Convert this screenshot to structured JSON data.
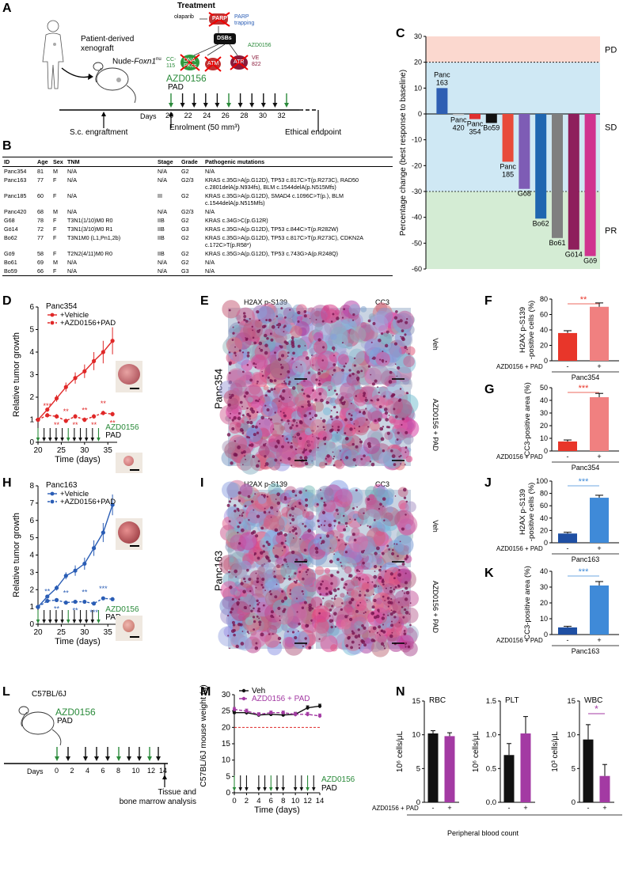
{
  "panels": {
    "A": "A",
    "B": "B",
    "C": "C",
    "D": "D",
    "E": "E",
    "F": "F",
    "G": "G",
    "H": "H",
    "I": "I",
    "J": "J",
    "K": "K",
    "L": "L",
    "M": "M",
    "N": "N"
  },
  "panelA": {
    "patient_xenograft": "Patient-derived\nxenograft",
    "nude": "Nude-",
    "foxn1": "Foxn1",
    "nu": "nu",
    "treatment": "Treatment",
    "olaparib": "olaparib",
    "parp": "PARP",
    "parp_trapping": "PARP\ntrapping",
    "dsbs": "DSBs",
    "azd_small": "AZD0156",
    "cc115": "CC-\n115",
    "dnapkcs": "DNA\nPKcs",
    "atm": "ATM",
    "atr": "ATR",
    "ve822": "VE\n822",
    "azd0156": "AZD0156",
    "pad": "PAD",
    "days": "Days",
    "day_ticks": [
      "20",
      "22",
      "24",
      "26",
      "28",
      "30",
      "32"
    ],
    "sc_engraftment": "S.c. engraftment",
    "enrolment": "Enrolment (50 mm³)",
    "ethical": "Ethical endpoint"
  },
  "table": {
    "headers": [
      "ID",
      "Age",
      "Sex",
      "TNM",
      "Stage",
      "Grade",
      "Pathogenic mutations"
    ],
    "rows": [
      [
        "Panc354",
        "81",
        "M",
        "N/A",
        "N/A",
        "G2",
        "N/A"
      ],
      [
        "Panc163",
        "77",
        "F",
        "N/A",
        "N/A",
        "G2/3",
        "KRAS c.35G>A(p.G12D), TP53 c.817C>T(p.R273C), RAD50 c.2801delA(p.N934fs), BLM c.1544delA(p.N515Mfs)"
      ],
      [
        "Panc185",
        "60",
        "F",
        "N/A",
        "III",
        "G2",
        "KRAS c.35G>A(p.G12D), SMAD4 c.1096C>T(p.), BLM c.1544delA(p.N515Mfs)"
      ],
      [
        "Panc420",
        "68",
        "M",
        "N/A",
        "N/A",
        "G2/3",
        "N/A"
      ],
      [
        "G68",
        "78",
        "F",
        "T3N1(1/10)M0 R0",
        "IIB",
        "G2",
        "KRAS c.34G>C(p.G12R)"
      ],
      [
        "Gö14",
        "72",
        "F",
        "T3N1(3/10)M0 R1",
        "IIB",
        "G3",
        "KRAS c.35G>A(p.G12D), TP53 c.844C>T(p.R282W)"
      ],
      [
        "Bo62",
        "77",
        "F",
        "T3N1M0 (L1,Pn1,2b)",
        "IIB",
        "G2",
        "KRAS c.35G>A(p.G12D), TP53 c.817C>T(p.R273C), CDKN2A c.172C>T(p.R58*)"
      ],
      [
        "Gö9",
        "58",
        "F",
        "T2N2(4/11)M0 R0",
        "IIB",
        "G2",
        "KRAS c.35G>A(p.G12D), TP53 c.743G>A(p.R248Q)"
      ],
      [
        "Bo61",
        "69",
        "M",
        "N/A",
        "N/A",
        "G2",
        "N/A"
      ],
      [
        "Bo59",
        "66",
        "F",
        "N/A",
        "N/A",
        "G3",
        "N/A"
      ]
    ]
  },
  "chart_data": [
    {
      "panel": "C",
      "type": "bar",
      "ylabel": "Percentage change (best response to baseline)",
      "ylim": [
        -60,
        30
      ],
      "yticks": [
        -60,
        -50,
        -40,
        -30,
        -20,
        -10,
        0,
        10,
        20,
        30
      ],
      "zones": [
        "PD",
        "SD",
        "PR"
      ],
      "zone_bounds": [
        20,
        -30
      ],
      "categories": [
        "Panc 163",
        "Panc 420",
        "Panc 354",
        "Bo59",
        "Panc 185",
        "Gö8",
        "Bo62",
        "Bo61",
        "Gö14",
        "Gö9"
      ],
      "values": [
        10,
        -0.5,
        -2,
        -3.5,
        -18.5,
        -29,
        -40.5,
        -48,
        -52.5,
        -55
      ],
      "colors": [
        "#2f5fb3",
        "#c0c0c0",
        "#e03030",
        "#111111",
        "#e84a3a",
        "#7e5cb5",
        "#1f66b0",
        "#7f7f7f",
        "#8e1f5c",
        "#d0338f"
      ]
    },
    {
      "panel": "D",
      "type": "line",
      "title": "Panc354",
      "ylabel": "Relative tumor growth",
      "xlabel": "Time (days)",
      "ylim": [
        0,
        6
      ],
      "xlim": [
        20,
        37
      ],
      "yticks": [
        0,
        1,
        2,
        3,
        4,
        5,
        6
      ],
      "xticks": [
        20,
        25,
        30,
        35
      ],
      "series": [
        {
          "name": "+Vehicle",
          "style": "solid",
          "color": "#e02828",
          "x": [
            20,
            22,
            24,
            26,
            28,
            30,
            32,
            34,
            36
          ],
          "y": [
            1,
            1.45,
            1.95,
            2.45,
            2.85,
            3.15,
            3.6,
            4.0,
            4.5
          ],
          "err": [
            0.05,
            0.1,
            0.15,
            0.2,
            0.25,
            0.3,
            0.4,
            0.5,
            0.6
          ]
        },
        {
          "name": "+AZD0156+PAD",
          "style": "dashed",
          "color": "#e02828",
          "x": [
            20,
            22,
            24,
            26,
            28,
            30,
            32,
            34,
            36
          ],
          "y": [
            1,
            1.2,
            1.15,
            0.95,
            1.15,
            1.0,
            1.15,
            1.3,
            1.25
          ],
          "err": [
            0.05,
            0.1,
            0.1,
            0.1,
            0.1,
            0.1,
            0.1,
            0.1,
            0.1
          ]
        }
      ],
      "sig_labels": [
        "***",
        "**",
        "**",
        "**",
        "**",
        "**",
        "**",
        "**"
      ],
      "sig_color": "#e02828",
      "treatment": "AZD0156",
      "pad": "PAD"
    },
    {
      "panel": "H",
      "type": "line",
      "title": "Panc163",
      "ylabel": "Relative tumor growth",
      "xlabel": "Time (days)",
      "ylim": [
        0,
        8
      ],
      "xlim": [
        20,
        37
      ],
      "yticks": [
        0,
        1,
        2,
        3,
        4,
        5,
        6,
        7,
        8
      ],
      "xticks": [
        20,
        25,
        30,
        35
      ],
      "series": [
        {
          "name": "+Vehicle",
          "style": "solid",
          "color": "#2a5db5",
          "x": [
            20,
            22,
            24,
            26,
            28,
            30,
            32,
            34,
            36
          ],
          "y": [
            1,
            1.6,
            2.1,
            2.8,
            3.1,
            3.5,
            4.4,
            5.3,
            6.9
          ],
          "err": [
            0.05,
            0.1,
            0.15,
            0.2,
            0.3,
            0.35,
            0.45,
            0.55,
            0.6
          ]
        },
        {
          "name": "+AZD0156+PAD",
          "style": "dashed",
          "color": "#2a5db5",
          "x": [
            20,
            22,
            24,
            26,
            28,
            30,
            32,
            34,
            36
          ],
          "y": [
            1,
            1.35,
            1.4,
            1.25,
            1.3,
            1.3,
            1.2,
            1.5,
            1.45
          ],
          "err": [
            0.05,
            0.1,
            0.1,
            0.1,
            0.1,
            0.1,
            0.1,
            0.1,
            0.1
          ]
        }
      ],
      "sig_labels": [
        "**",
        "**",
        "**",
        "**",
        "**",
        "***",
        "***"
      ],
      "sig_color": "#2a5db5",
      "treatment": "AZD0156",
      "pad": "PAD"
    },
    {
      "panel": "F",
      "type": "bar",
      "ylabel": "H2AX p-S139 -positive cells (%)",
      "ylim": [
        0,
        80
      ],
      "yticks": [
        0,
        20,
        40,
        60,
        80
      ],
      "categories": [
        "-",
        "+"
      ],
      "values": [
        36,
        70
      ],
      "err": [
        3,
        5
      ],
      "colors": [
        "#e8362a",
        "#f08080"
      ],
      "group_label": "AZD0156 + PAD",
      "model": "Panc354",
      "sig": "**",
      "sig_color": "#e8362a"
    },
    {
      "panel": "G",
      "type": "bar",
      "ylabel": "CC3-positive area (%)",
      "ylim": [
        0,
        50
      ],
      "yticks": [
        0,
        10,
        20,
        30,
        40,
        50
      ],
      "categories": [
        "-",
        "+"
      ],
      "values": [
        7.5,
        42.5
      ],
      "err": [
        1.2,
        3
      ],
      "colors": [
        "#e8362a",
        "#f08080"
      ],
      "group_label": "AZD0156 + PAD",
      "model": "Panc354",
      "sig": "***",
      "sig_color": "#e8362a"
    },
    {
      "panel": "J",
      "type": "bar",
      "ylabel": "H2AX p-S139 -positive cells (%)",
      "ylim": [
        0,
        100
      ],
      "yticks": [
        0,
        20,
        40,
        60,
        80,
        100
      ],
      "categories": [
        "-",
        "+"
      ],
      "values": [
        15,
        73
      ],
      "err": [
        2,
        4
      ],
      "colors": [
        "#1f4fa3",
        "#3f8ad8"
      ],
      "group_label": "AZD0156 + PAD",
      "model": "Panc163",
      "sig": "***",
      "sig_color": "#3f8ad8"
    },
    {
      "panel": "K",
      "type": "bar",
      "ylabel": "CC3-positive area (%)",
      "ylim": [
        0,
        40
      ],
      "yticks": [
        0,
        10,
        20,
        30,
        40
      ],
      "categories": [
        "-",
        "+"
      ],
      "values": [
        4.5,
        31
      ],
      "err": [
        0.7,
        2.5
      ],
      "colors": [
        "#1f4fa3",
        "#3f8ad8"
      ],
      "group_label": "AZD0156 + PAD",
      "model": "Panc163",
      "sig": "***",
      "sig_color": "#3f8ad8"
    },
    {
      "panel": "M",
      "type": "line",
      "ylabel": "C57BL/6J mouse weight (g)",
      "xlabel": "Time (days)",
      "ylim": [
        0,
        30
      ],
      "xlim": [
        0,
        14
      ],
      "yticks": [
        0,
        5,
        10,
        15,
        20,
        25,
        30
      ],
      "xticks": [
        0,
        2,
        4,
        6,
        8,
        10,
        12,
        14
      ],
      "threshold": 20,
      "series": [
        {
          "name": "Veh",
          "style": "solid",
          "color": "#111111",
          "x": [
            0,
            2,
            4,
            6,
            8,
            10,
            12,
            14
          ],
          "y": [
            24.5,
            24.5,
            23.8,
            24,
            23.8,
            24,
            26,
            26.5
          ],
          "err": [
            0.6,
            0.6,
            0.5,
            0.5,
            0.5,
            0.6,
            0.6,
            0.6
          ]
        },
        {
          "name": "AZD0156 + PAD",
          "style": "dashed",
          "color": "#a33aa3",
          "x": [
            0,
            2,
            4,
            6,
            8,
            10,
            12,
            14
          ],
          "y": [
            25.5,
            25,
            24,
            24.5,
            24.5,
            24,
            24,
            23.5
          ],
          "err": [
            0.6,
            0.6,
            0.5,
            0.5,
            0.5,
            0.6,
            0.6,
            0.6
          ]
        }
      ],
      "treatment": "AZD0156",
      "pad": "PAD"
    },
    {
      "panel": "N",
      "type": "bar",
      "title": "RBC",
      "ylabel": "10⁶ cells/μL",
      "ylim": [
        0,
        15
      ],
      "yticks": [
        0,
        5,
        10,
        15
      ],
      "categories": [
        "-",
        "+"
      ],
      "values": [
        10.2,
        9.8
      ],
      "err": [
        0.4,
        0.5
      ],
      "colors": [
        "#111111",
        "#a33aa3"
      ]
    },
    {
      "panel": "N",
      "type": "bar",
      "title": "PLT",
      "ylabel": "10⁶ cells/μL",
      "ylim": [
        0,
        1.5
      ],
      "yticks": [
        0,
        0.5,
        1.0,
        1.5
      ],
      "categories": [
        "-",
        "+"
      ],
      "values": [
        0.7,
        1.02
      ],
      "err": [
        0.17,
        0.25
      ],
      "colors": [
        "#111111",
        "#a33aa3"
      ]
    },
    {
      "panel": "N",
      "type": "bar",
      "title": "WBC",
      "ylabel": "10³ cells/μL",
      "ylim": [
        0,
        15
      ],
      "yticks": [
        0,
        5,
        10,
        15
      ],
      "categories": [
        "-",
        "+"
      ],
      "values": [
        9.3,
        3.9
      ],
      "err": [
        2.2,
        1.7
      ],
      "colors": [
        "#111111",
        "#a33aa3"
      ],
      "sig": "*",
      "sig_color": "#a33aa3"
    }
  ],
  "panelE": {
    "col1": "H2AX p-S139",
    "col2": "CC3",
    "row1": "Veh",
    "row2": "AZD0156 + PAD",
    "side": "Panc354"
  },
  "panelI": {
    "col1": "H2AX p-S139",
    "col2": "CC3",
    "row1": "Veh",
    "row2": "AZD0156 + PAD",
    "side": "Panc163"
  },
  "panelL": {
    "strain": "C57BL/6J",
    "azd": "AZD0156",
    "pad": "PAD",
    "days": "Days",
    "ticks": [
      "0",
      "2",
      "4",
      "6",
      "8",
      "10",
      "12",
      "14"
    ],
    "endpoint": "Tissue and\nbone marrow analysis"
  },
  "panelN": {
    "group_label": "AZD0156 + PAD",
    "footer": "Peripheral blood count"
  }
}
